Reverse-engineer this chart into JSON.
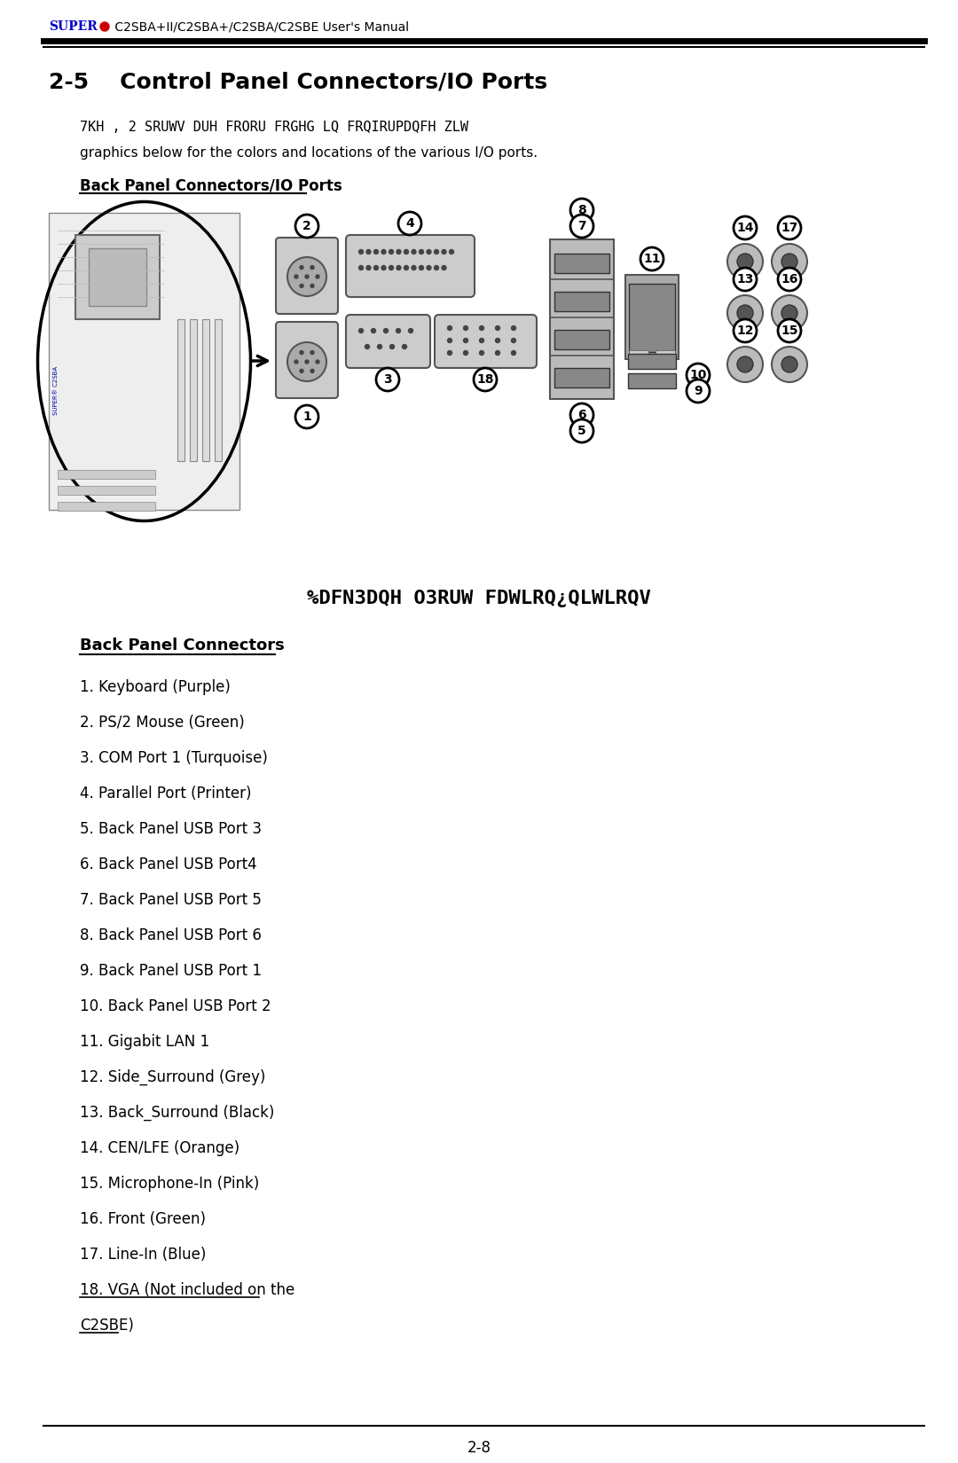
{
  "header_super": "SUPER",
  "header_dot_color": "#cc0000",
  "header_super_color": "#0000cc",
  "header_text": " C2SBA+II/C2SBA+/C2SBA/C2SBE User's Manual",
  "section_title": "2-5    Control Panel Connectors/IO Ports",
  "garbled_text": "7KH , 2 SRUWV DUH FRORU FRGHG LQ FRQIRUPDQFH ZLW",
  "normal_text": "graphics below for the colors and locations of the various I/O ports.",
  "back_panel_title": "Back Panel Connectors/IO Ports",
  "garbled_caption": "%DFN3DQH O3RUW FDWLRQ¿QLWLRQV",
  "back_panel_connectors_title": "Back Panel Connectors",
  "connectors": [
    "1. Keyboard (Purple)",
    "2. PS/2 Mouse (Green)",
    "3. COM Port 1 (Turquoise)",
    "4. Parallel Port (Printer)",
    "5. Back Panel USB Port 3",
    "6. Back Panel USB Port4",
    "7. Back Panel USB Port 5",
    "8. Back Panel USB Port 6",
    "9. Back Panel USB Port 1",
    "10. Back Panel USB Port 2",
    "11. Gigabit LAN 1",
    "12. Side_Surround (Grey)",
    "13. Back_Surround (Black)",
    "14. CEN/LFE (Orange)",
    "15. Microphone-In (Pink)",
    "16. Front (Green)",
    "17. Line-In (Blue)",
    "18. VGA (Not included on the",
    "C2SBE)"
  ],
  "page_number": "2-8",
  "bg_color": "#ffffff"
}
